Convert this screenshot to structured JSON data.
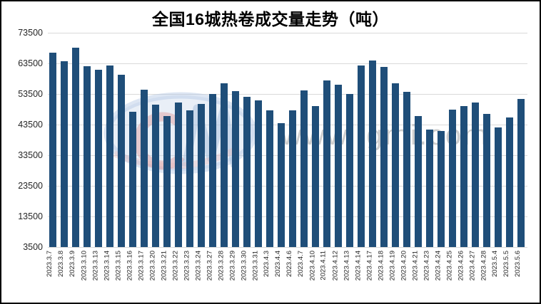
{
  "title": "全国16城热卷成交量走势（吨）",
  "watermark": {
    "text": "www.lgmi.com"
  },
  "colors": {
    "bar": "#1f4e79",
    "gridline": "#d9d9d9",
    "title_text": "#000000",
    "axis_text": "#262626",
    "border": "#000000",
    "watermark_text": "#c6c6c6",
    "watermark_blue": "#b3c7e4",
    "watermark_red": "#dc9090"
  },
  "chart_data": {
    "type": "bar",
    "title": "全国16城热卷成交量走势（吨）",
    "categories": [
      "2023.3.7",
      "2023.3.8",
      "2023.3.9",
      "2023.3.10",
      "2023.3.13",
      "2023.3.14",
      "2023.3.15",
      "2023.3.16",
      "2023.3.17",
      "2023.3.20",
      "2023.3.21",
      "2023.3.22",
      "2023.3.23",
      "2023.3.24",
      "2023.3.27",
      "2023.3.28",
      "2023.3.29",
      "2023.3.30",
      "2023.3.31",
      "2023.4.3",
      "2023.4.4",
      "2023.4.6",
      "2023.4.7",
      "2023.4.10",
      "2023.4.11",
      "2023.4.12",
      "2023.4.13",
      "2023.4.14",
      "2023.4.17",
      "2023.4.18",
      "2023.4.19",
      "2023.4.20",
      "2023.4.21",
      "2023.4.23",
      "2023.4.24",
      "2023.4.25",
      "2023.4.26",
      "2023.4.27",
      "2023.4.28",
      "2023.5.4",
      "2023.5.5",
      "2023.5.6"
    ],
    "values": [
      67100,
      64200,
      68500,
      62600,
      61400,
      62700,
      59800,
      47700,
      55000,
      49900,
      46300,
      50800,
      48200,
      50300,
      53600,
      57000,
      54400,
      52500,
      51400,
      48200,
      43900,
      48100,
      54700,
      49600,
      58000,
      56600,
      53600,
      62700,
      64500,
      62300,
      57000,
      54100,
      46200,
      41800,
      41500,
      48400,
      49500,
      50600,
      47000,
      42600,
      45800,
      51900
    ],
    "xlabel": "",
    "ylabel": "",
    "ylim": [
      3500,
      73500
    ],
    "ytick_step": 10000,
    "ytick_labels": [
      "73500",
      "63500",
      "53500",
      "43500",
      "33500",
      "23500",
      "13500",
      "3500"
    ],
    "grid": "horizontal",
    "legend": "none",
    "x_label_rotation": -90
  }
}
